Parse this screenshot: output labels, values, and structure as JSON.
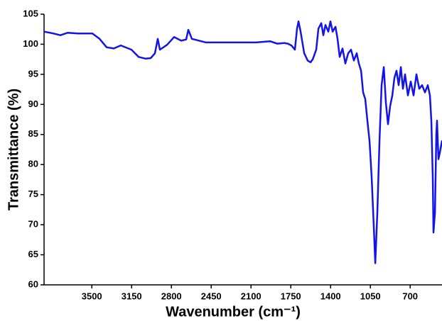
{
  "chart_data": {
    "type": "line",
    "xlabel": "Wavenumber (cm⁻¹)",
    "ylabel": "Transmittance (%)",
    "xlim": [
      3920,
      420
    ],
    "xticks": [
      3500,
      3150,
      2800,
      2450,
      2100,
      1750,
      1400,
      1050,
      700
    ],
    "xreversed": true,
    "ylim": [
      60,
      105
    ],
    "yticks": [
      60,
      65,
      70,
      75,
      80,
      85,
      90,
      95,
      100,
      105
    ],
    "series": [
      {
        "color": "#1414e6",
        "x": [
          3920,
          3839,
          3776,
          3714,
          3620,
          3495,
          3432,
          3370,
          3307,
          3245,
          3151,
          3089,
          3026,
          2982,
          2945,
          2920,
          2901,
          2839,
          2776,
          2714,
          2670,
          2651,
          2620,
          2495,
          2245,
          2057,
          1932,
          1870,
          1807,
          1776,
          1745,
          1714,
          1695,
          1682,
          1664,
          1632,
          1601,
          1576,
          1557,
          1526,
          1507,
          1482,
          1464,
          1445,
          1420,
          1401,
          1382,
          1357,
          1339,
          1320,
          1295,
          1270,
          1245,
          1220,
          1195,
          1170,
          1151,
          1132,
          1114,
          1095,
          1076,
          1057,
          1039,
          1020,
          1007,
          989,
          970,
          951,
          932,
          914,
          895,
          876,
          857,
          839,
          820,
          801,
          782,
          764,
          745,
          720,
          695,
          670,
          645,
          620,
          595,
          570,
          545,
          526,
          514,
          501,
          495,
          482,
          470,
          464,
          451,
          439,
          420
        ],
        "values": [
          102.1,
          101.8,
          101.5,
          101.9,
          101.8,
          101.8,
          100.9,
          99.5,
          99.3,
          99.8,
          99.1,
          97.9,
          97.6,
          97.7,
          98.5,
          100.9,
          99.1,
          99.9,
          101.2,
          100.6,
          100.8,
          102.4,
          100.9,
          100.3,
          100.3,
          100.3,
          100.5,
          100.1,
          100.2,
          100.1,
          99.8,
          99.1,
          102.6,
          103.8,
          102.1,
          98.5,
          97.3,
          97.0,
          97.5,
          99.1,
          102.6,
          103.5,
          101.5,
          103.2,
          102.1,
          103.8,
          102.1,
          102.9,
          100.9,
          97.9,
          99.3,
          96.8,
          98.5,
          99.1,
          97.3,
          98.5,
          96.8,
          95.6,
          92.0,
          90.9,
          87.3,
          83.8,
          77.9,
          69.7,
          63.6,
          72.0,
          83.8,
          93.2,
          96.2,
          90.3,
          86.7,
          89.7,
          91.5,
          94.4,
          95.6,
          93.2,
          96.2,
          92.6,
          95.0,
          91.5,
          93.8,
          91.5,
          95.0,
          92.6,
          93.2,
          92.0,
          93.2,
          91.5,
          87.3,
          77.9,
          68.7,
          72.0,
          85.0,
          87.3,
          80.9,
          82.0,
          84.0
        ]
      }
    ]
  }
}
